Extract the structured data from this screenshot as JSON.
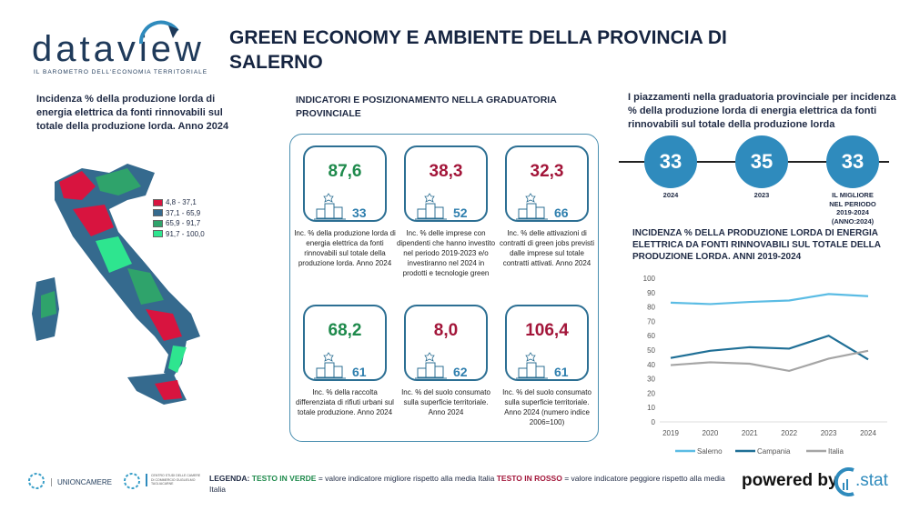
{
  "logo": {
    "name": "dataview",
    "tagline": "IL BAROMETRO DELL'ECONOMIA TERRITORIALE"
  },
  "title": "GREEN ECONOMY E AMBIENTE DELLA PROVINCIA DI SALERNO",
  "map": {
    "heading": "Incidenza % della produzione lorda di energia elettrica da fonti rinnovabili sul totale della produzione lorda. Anno 2024",
    "legend": [
      {
        "label": "4,8 - 37,1",
        "color": "#d8143f"
      },
      {
        "label": "37,1 - 65,9",
        "color": "#356a8e"
      },
      {
        "label": "65,9 - 91,7",
        "color": "#2fa36b"
      },
      {
        "label": "91,7 - 100,0",
        "color": "#2ee58f"
      }
    ]
  },
  "indicators": {
    "heading": "INDICATORI E POSIZIONAMENTO NELLA GRADUATORIA PROVINCIALE",
    "cards": [
      {
        "value": "87,6",
        "rank": "33",
        "status": "green",
        "desc": "Inc. % della produzione lorda di energia elettrica da fonti rinnovabili sul totale della produzione lorda. Anno 2024"
      },
      {
        "value": "38,3",
        "rank": "52",
        "status": "red",
        "desc": "Inc. % delle imprese con dipendenti che hanno investito nel periodo 2019-2023 e/o investiranno nel 2024 in prodotti e tecnologie green"
      },
      {
        "value": "32,3",
        "rank": "66",
        "status": "red",
        "desc": "Inc. % delle attivazioni di contratti di green jobs previsti dalle imprese sul totale contratti attivati. Anno 2024"
      },
      {
        "value": "68,2",
        "rank": "61",
        "status": "green",
        "desc": "Inc. % della raccolta differenziata di rifiuti urbani sul totale produzione. Anno 2024"
      },
      {
        "value": "8,0",
        "rank": "62",
        "status": "red",
        "desc": "Inc. % del suolo consumato sulla superficie territoriale. Anno 2024"
      },
      {
        "value": "106,4",
        "rank": "61",
        "status": "red",
        "desc": "Inc. % del suolo consumato sulla superficie territoriale. Anno 2024 (numero indice 2006=100)"
      }
    ]
  },
  "ranking": {
    "heading": "I piazzamenti nella graduatoria provinciale per incidenza % della produzione lorda di energia elettrica da fonti rinnovabili sul totale della produzione lorda",
    "items": [
      {
        "value": "33",
        "label": "2024"
      },
      {
        "value": "35",
        "label": "2023"
      },
      {
        "value": "33",
        "label": "IL MIGLIORE NEL PERIODO 2019-2024 (ANNO:2024)"
      }
    ]
  },
  "chart_data": {
    "type": "line",
    "title": "INCIDENZA % DELLA PRODUZIONE LORDA DI ENERGIA ELETTRICA DA FONTI RINNOVABILI SUL TOTALE DELLA PRODUZIONE LORDA. ANNI 2019-2024",
    "categories": [
      "2019",
      "2020",
      "2021",
      "2022",
      "2023",
      "2024"
    ],
    "ylim": [
      0,
      100
    ],
    "yticks": [
      0,
      10,
      20,
      30,
      40,
      50,
      60,
      70,
      80,
      90,
      100
    ],
    "grid": false,
    "legend": "bottom",
    "series": [
      {
        "name": "Salerno",
        "color": "#5bbce4",
        "values": [
          83,
          82,
          83.5,
          84.5,
          89,
          87.5
        ]
      },
      {
        "name": "Campania",
        "color": "#1f6f96",
        "values": [
          44.5,
          49.5,
          52,
          51,
          60,
          43.5
        ]
      },
      {
        "name": "Italia",
        "color": "#a5a5a5",
        "values": [
          39.5,
          41.5,
          40.5,
          35.5,
          44,
          49.5
        ]
      }
    ]
  },
  "footer": {
    "unioncamere": "UNIONCAMERE",
    "tagliacarne": "CENTRO STUDI DELLE CAMERE DI COMMERCIO GUGLIELMO TAGLIACARNE",
    "legend_label": "LEGENDA:",
    "green_text": "TESTO IN VERDE",
    "green_desc": "= valore indicatore migliore rispetto alla media Italia",
    "red_text": "TESTO IN ROSSO",
    "red_desc": "= valore indicatore peggiore rispetto alla media Italia",
    "powered": "powered by",
    "brand": ".stat"
  }
}
